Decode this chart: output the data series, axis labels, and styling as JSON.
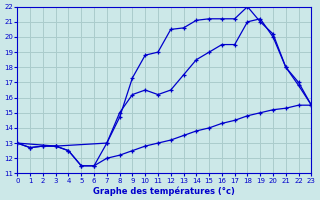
{
  "xlabel": "Graphe des températures (°c)",
  "bg_color": "#cce8e8",
  "line_color": "#0000cc",
  "grid_color": "#aacccc",
  "xlim": [
    0,
    23
  ],
  "ylim": [
    11,
    22
  ],
  "xticks": [
    0,
    1,
    2,
    3,
    4,
    5,
    6,
    7,
    8,
    9,
    10,
    11,
    12,
    13,
    14,
    15,
    16,
    17,
    18,
    19,
    20,
    21,
    22,
    23
  ],
  "yticks": [
    11,
    12,
    13,
    14,
    15,
    16,
    17,
    18,
    19,
    20,
    21,
    22
  ],
  "line_flat_x": [
    0,
    1,
    2,
    3,
    4,
    5,
    6,
    7,
    8,
    9,
    10,
    11,
    12,
    13,
    14,
    15,
    16,
    17,
    18,
    19,
    20,
    21,
    22,
    23
  ],
  "line_flat_y": [
    13.0,
    12.7,
    12.8,
    12.8,
    12.5,
    11.5,
    11.5,
    12.0,
    12.2,
    12.5,
    12.8,
    13.0,
    13.2,
    13.5,
    13.8,
    14.0,
    14.3,
    14.5,
    14.8,
    15.0,
    15.2,
    15.3,
    15.5,
    15.5
  ],
  "line_top_x": [
    0,
    1,
    2,
    3,
    4,
    5,
    6,
    7,
    8,
    9,
    10,
    11,
    12,
    13,
    14,
    15,
    16,
    17,
    18,
    19,
    20,
    21,
    22,
    23
  ],
  "line_top_y": [
    13.0,
    12.7,
    12.8,
    12.8,
    12.5,
    11.5,
    11.5,
    13.0,
    15.0,
    16.2,
    16.5,
    16.2,
    16.5,
    17.5,
    18.5,
    19.0,
    19.5,
    19.5,
    21.0,
    21.2,
    20.0,
    18.0,
    17.0,
    15.5
  ],
  "line_peak_x": [
    0,
    3,
    7,
    8,
    9,
    10,
    11,
    12,
    13,
    14,
    15,
    16,
    17,
    18,
    19,
    20,
    21,
    22,
    23
  ],
  "line_peak_y": [
    13.0,
    12.8,
    13.0,
    14.7,
    17.3,
    18.8,
    19.0,
    20.5,
    20.6,
    21.1,
    21.2,
    21.2,
    21.2,
    22.0,
    21.0,
    20.2,
    18.0,
    16.8,
    15.5
  ]
}
